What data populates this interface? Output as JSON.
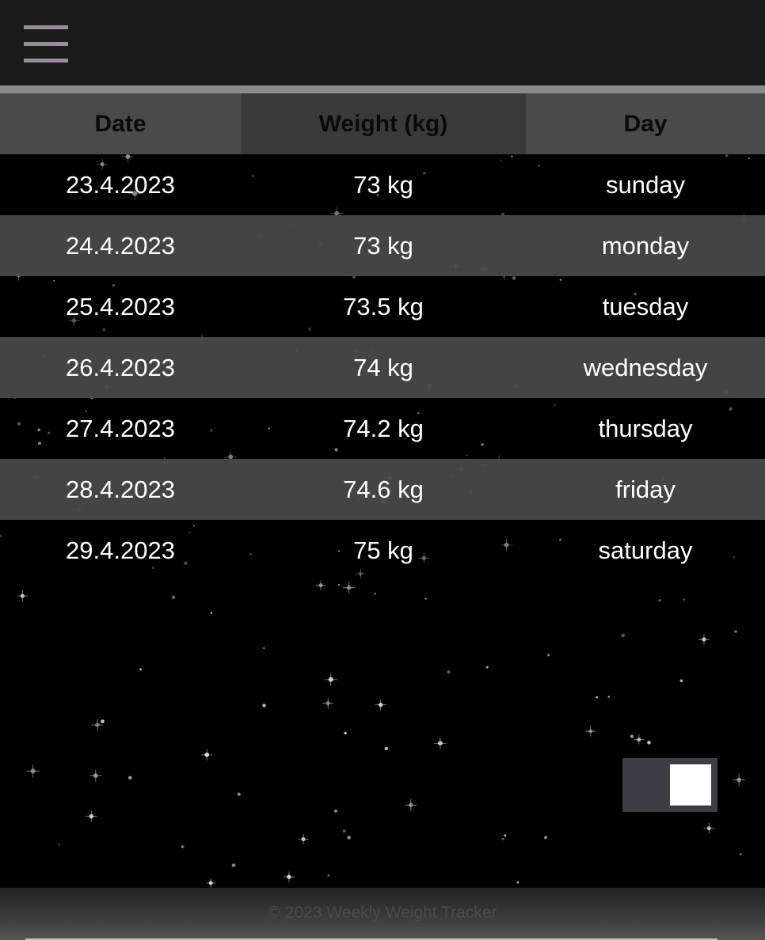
{
  "header": {
    "menu_icon": "hamburger-menu-icon",
    "menu_gradient": [
      "#8d8d95",
      "#a48aa6"
    ]
  },
  "table": {
    "columns": [
      "Date",
      "Weight (kg)",
      "Day"
    ],
    "rows": [
      {
        "date": "23.4.2023",
        "weight": "73 kg",
        "day": "sunday"
      },
      {
        "date": "24.4.2023",
        "weight": "73 kg",
        "day": "monday"
      },
      {
        "date": "25.4.2023",
        "weight": "73.5 kg",
        "day": "tuesday"
      },
      {
        "date": "26.4.2023",
        "weight": "74 kg",
        "day": "wednesday"
      },
      {
        "date": "27.4.2023",
        "weight": "74.2 kg",
        "day": "thursday"
      },
      {
        "date": "28.4.2023",
        "weight": "74.6 kg",
        "day": "friday"
      },
      {
        "date": "29.4.2023",
        "weight": "75 kg",
        "day": "saturday"
      }
    ]
  },
  "toggle": {
    "state": "on"
  },
  "footer": {
    "text": "© 2023 Weekly Weight Tracker"
  },
  "colors": {
    "header_bg": "#1b1b1b",
    "row_alt_bg": "#484748",
    "page_bg": "#000000"
  }
}
